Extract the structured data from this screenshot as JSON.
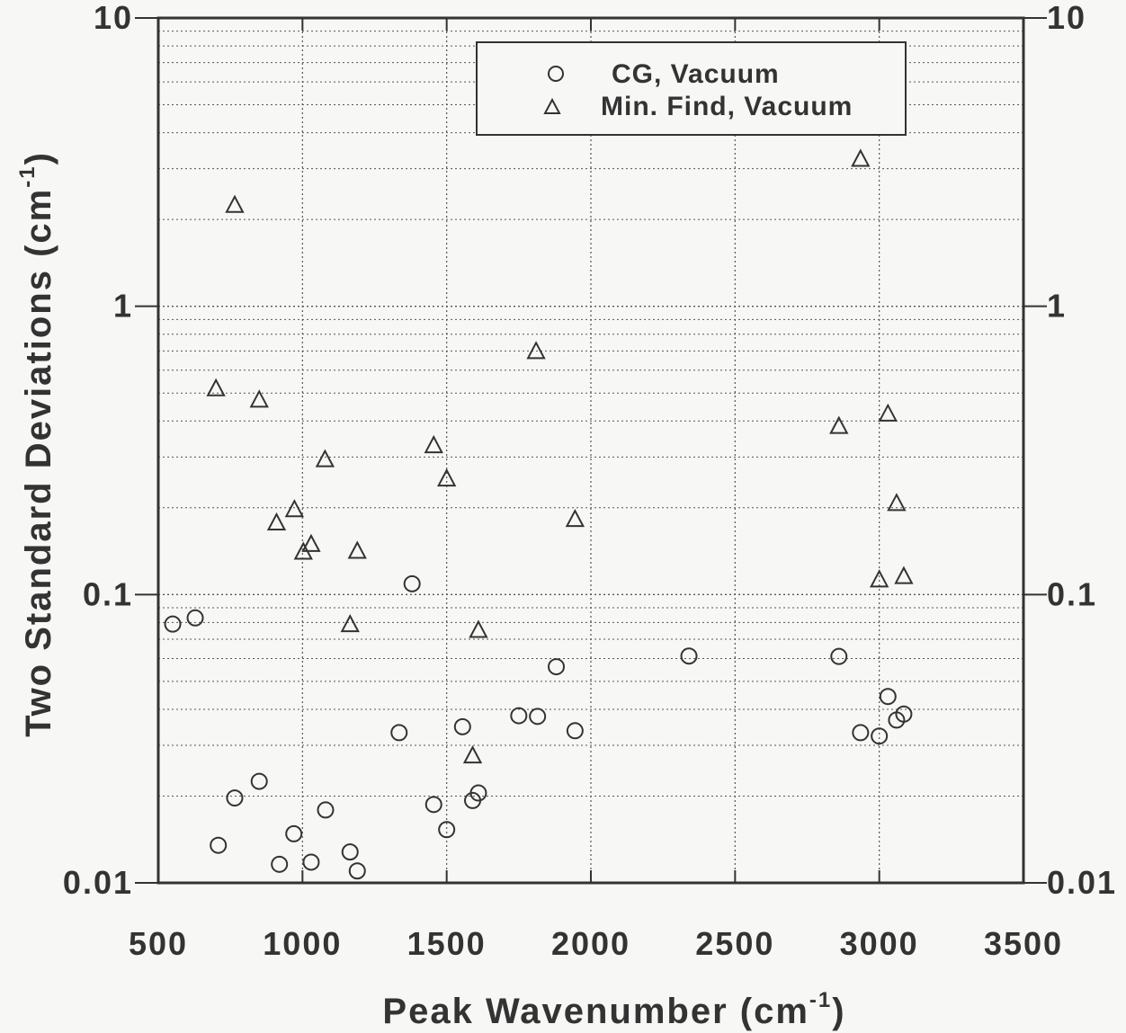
{
  "chart_data": {
    "type": "scatter",
    "title": "",
    "xlabel": {
      "main": "Peak Wavenumber (cm",
      "sup": "-1",
      "end": ")"
    },
    "ylabel": {
      "main": "Two Standard Deviations (cm",
      "sup": "-1",
      "end": ")"
    },
    "xlim": [
      500,
      3500
    ],
    "ylim": [
      0.01,
      10
    ],
    "yscale": "log",
    "x_ticks": [
      500,
      1000,
      1500,
      2000,
      2500,
      3000,
      3500
    ],
    "x_tick_labels": [
      "500",
      "1000",
      "1500",
      "2000",
      "2500",
      "3000",
      "3500"
    ],
    "y_ticks": [
      0.01,
      0.1,
      1,
      10
    ],
    "y_tick_labels": [
      "0.01",
      "0.1",
      "1",
      "10"
    ],
    "y_tick_labels_right": [
      "0.01",
      "0.1",
      "1",
      "10"
    ],
    "grid": true,
    "legend_position": "top-right",
    "series": [
      {
        "name": "CG, Vacuum",
        "marker": "circle",
        "points": [
          [
            550,
            0.079
          ],
          [
            628,
            0.083
          ],
          [
            708,
            0.0135
          ],
          [
            765,
            0.0197
          ],
          [
            850,
            0.0225
          ],
          [
            920,
            0.0116
          ],
          [
            970,
            0.0148
          ],
          [
            1030,
            0.0118
          ],
          [
            1080,
            0.0179
          ],
          [
            1165,
            0.0128
          ],
          [
            1190,
            0.011
          ],
          [
            1335,
            0.0332
          ],
          [
            1380,
            0.109
          ],
          [
            1455,
            0.0187
          ],
          [
            1500,
            0.0153
          ],
          [
            1555,
            0.0348
          ],
          [
            1590,
            0.0193
          ],
          [
            1610,
            0.0205
          ],
          [
            1750,
            0.038
          ],
          [
            1815,
            0.0378
          ],
          [
            1880,
            0.0562
          ],
          [
            1945,
            0.0337
          ],
          [
            2340,
            0.0612
          ],
          [
            2860,
            0.061
          ],
          [
            2935,
            0.0332
          ],
          [
            3000,
            0.0323
          ],
          [
            3030,
            0.0443
          ],
          [
            3060,
            0.0367
          ],
          [
            3085,
            0.0385
          ]
        ]
      },
      {
        "name": "Min. Find, Vacuum",
        "marker": "triangle",
        "points": [
          [
            700,
            0.52
          ],
          [
            765,
            2.25
          ],
          [
            850,
            0.475
          ],
          [
            910,
            0.178
          ],
          [
            972,
            0.198
          ],
          [
            1003,
            0.141
          ],
          [
            1030,
            0.15
          ],
          [
            1078,
            0.295
          ],
          [
            1165,
            0.079
          ],
          [
            1190,
            0.142
          ],
          [
            1455,
            0.33
          ],
          [
            1500,
            0.253
          ],
          [
            1590,
            0.0277
          ],
          [
            1610,
            0.0755
          ],
          [
            1810,
            0.7
          ],
          [
            1945,
            0.183
          ],
          [
            2860,
            0.385
          ],
          [
            2935,
            3.25
          ],
          [
            3000,
            0.113
          ],
          [
            3030,
            0.425
          ],
          [
            3060,
            0.208
          ],
          [
            3085,
            0.116
          ]
        ]
      }
    ]
  },
  "colors": {
    "background": "#f7f7f5",
    "ink": "#333333",
    "grid": "#555555"
  }
}
